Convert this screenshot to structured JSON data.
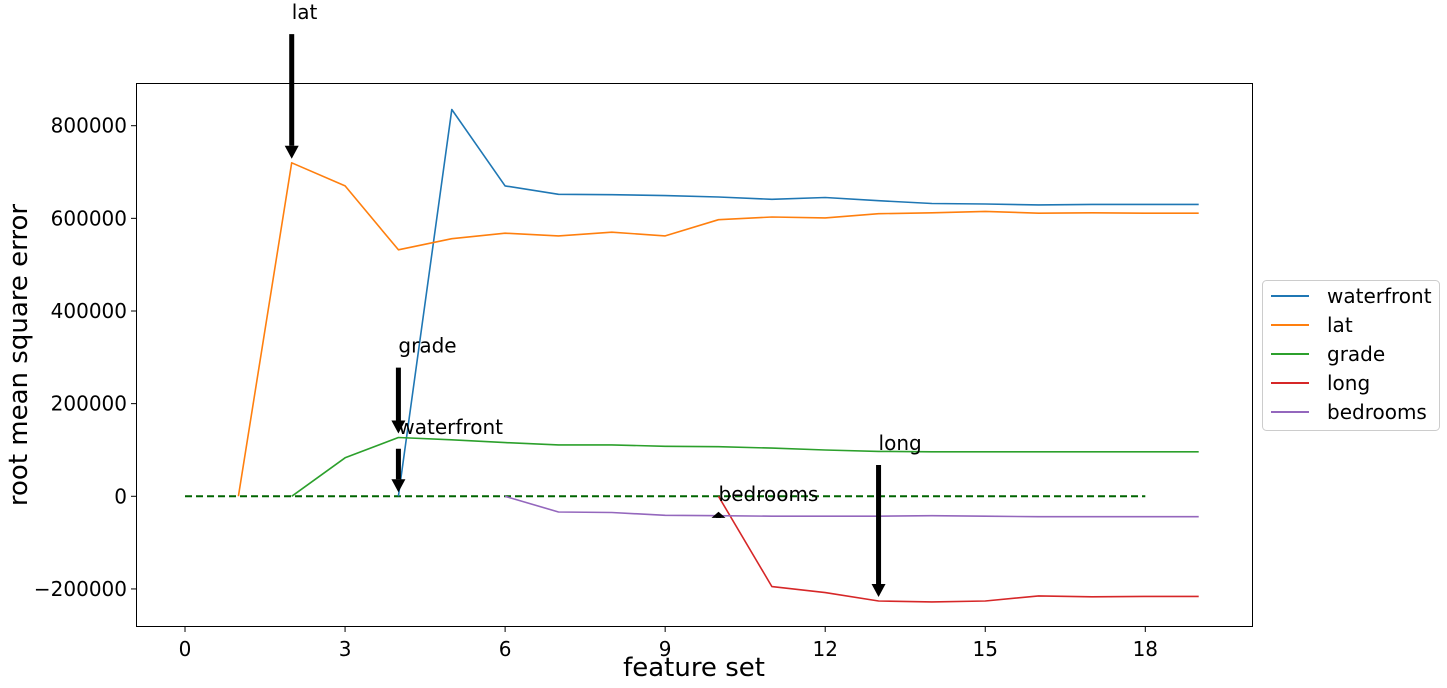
{
  "chart_data": {
    "type": "line",
    "title": "",
    "xlabel": "feature set",
    "ylabel": "root mean square error",
    "xlim": [
      -0.9,
      20.0
    ],
    "ylim": [
      -280000,
      890000
    ],
    "xticks": [
      0,
      3,
      6,
      9,
      12,
      15,
      18
    ],
    "xtick_labels": [
      "0",
      "3",
      "6",
      "9",
      "12",
      "15",
      "18"
    ],
    "yticks": [
      -200000,
      0,
      200000,
      400000,
      600000,
      800000
    ],
    "ytick_labels": [
      "−200000",
      "0",
      "200000",
      "400000",
      "600000",
      "800000"
    ],
    "grid": false,
    "legend_position": "right",
    "series": [
      {
        "name": "waterfront",
        "color": "#1f77b4",
        "x": [
          4,
          5,
          6,
          7,
          8,
          9,
          10,
          11,
          12,
          13,
          14,
          15,
          16,
          17,
          18,
          19
        ],
        "y": [
          0,
          835000,
          670000,
          652000,
          651000,
          649000,
          646000,
          641000,
          645000,
          638000,
          632000,
          631000,
          629000,
          630000,
          630000,
          630000
        ]
      },
      {
        "name": "lat",
        "color": "#ff7f0e",
        "x": [
          1,
          2,
          3,
          4,
          5,
          6,
          7,
          8,
          9,
          10,
          11,
          12,
          13,
          14,
          15,
          16,
          17,
          18,
          19
        ],
        "y": [
          0,
          720000,
          670000,
          532000,
          556000,
          568000,
          562000,
          570000,
          562000,
          597000,
          603000,
          601000,
          610000,
          612000,
          615000,
          611000,
          612000,
          611000,
          611000
        ]
      },
      {
        "name": "grade",
        "color": "#2ca02c",
        "x": [
          2,
          3,
          4,
          5,
          6,
          7,
          8,
          9,
          10,
          11,
          12,
          13,
          14,
          15,
          16,
          17,
          18,
          19
        ],
        "y": [
          0,
          83000,
          127000,
          122000,
          116000,
          111000,
          111000,
          108000,
          107000,
          104000,
          100000,
          97000,
          96000,
          96000,
          96000,
          96000,
          96000,
          96000
        ]
      },
      {
        "name": "long",
        "color": "#d62728",
        "x": [
          10,
          11,
          12,
          13,
          14,
          15,
          16,
          17,
          18,
          19
        ],
        "y": [
          0,
          -195000,
          -208000,
          -226000,
          -228000,
          -226000,
          -215000,
          -217000,
          -216000,
          -216000
        ]
      },
      {
        "name": "bedrooms",
        "color": "#9467bd",
        "x": [
          6,
          7,
          8,
          9,
          10,
          11,
          12,
          13,
          14,
          15,
          16,
          17,
          18,
          19
        ],
        "y": [
          0,
          -34000,
          -35000,
          -41000,
          -42000,
          -43000,
          -43000,
          -43000,
          -42000,
          -43000,
          -44000,
          -44000,
          -44000,
          -44000
        ]
      }
    ],
    "reference_line": {
      "x": [
        0,
        18
      ],
      "y": [
        0,
        0
      ],
      "color": "#006400",
      "style": "dashed"
    },
    "annotations": [
      {
        "text": "lat",
        "x": 2,
        "y": 720000,
        "text_y": 1030000
      },
      {
        "text": "grade",
        "x": 4,
        "y": 127000,
        "text_y": 310000
      },
      {
        "text": "waterfront",
        "x": 4,
        "y": 0,
        "text_y": 135000
      },
      {
        "text": "bedrooms",
        "x": 10,
        "y": -42000,
        "text_y": -10000
      },
      {
        "text": "long",
        "x": 13,
        "y": -226000,
        "text_y": 100000
      }
    ]
  }
}
